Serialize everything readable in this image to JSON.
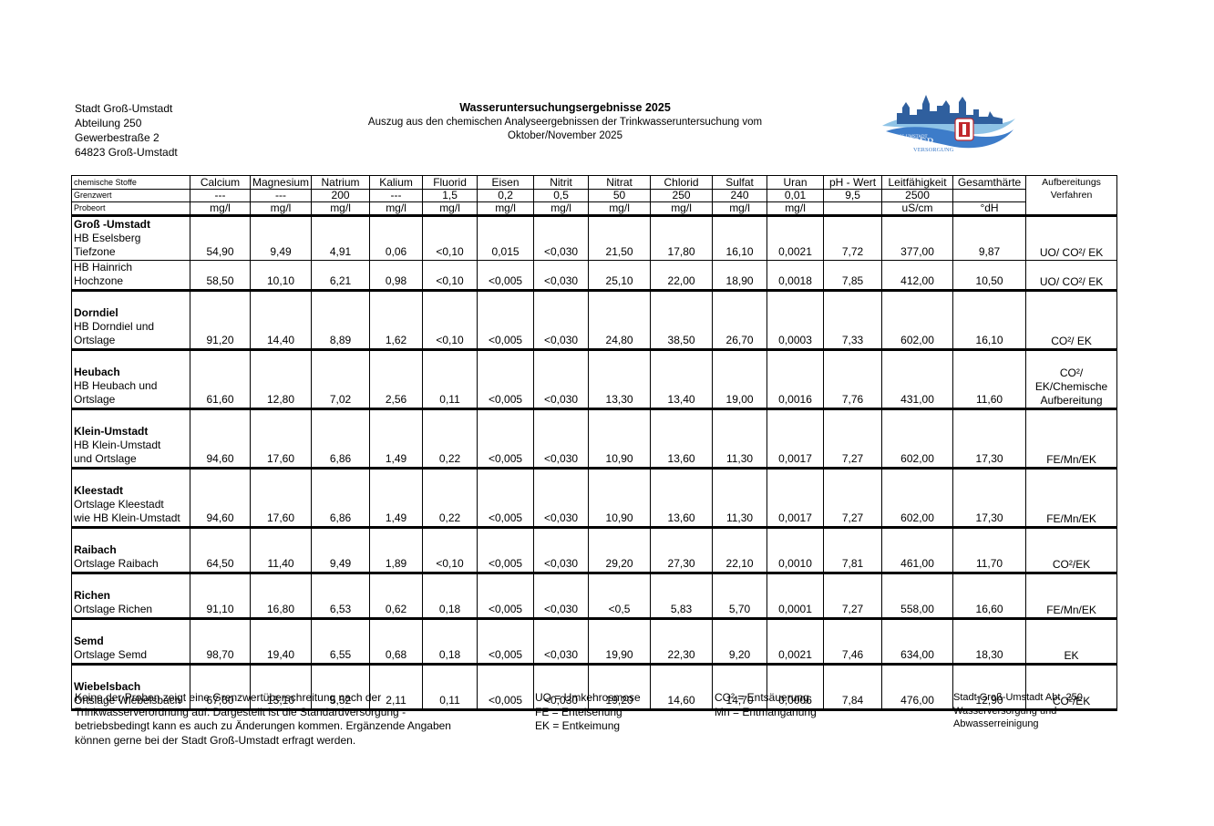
{
  "address": {
    "line1": "Stadt Groß-Umstadt",
    "line2": "Abteilung 250",
    "line3": "Gewerbestraße 2",
    "line4": "64823 Groß-Umstadt"
  },
  "header": {
    "title": "Wasseruntersuchungsergebnisse 2025",
    "subtitle1": "Auszug aus den chemischen Analyseergebnissen der Trinkwasseruntersuchung vom",
    "subtitle2": "Oktober/November 2025"
  },
  "logo": {
    "text_top": "GROSS-UMSTADT",
    "text_main": "WASSER",
    "text_sub": "VERSORGUNG",
    "icon": "city-skyline-wave-logo",
    "colors": {
      "blue": "#3d7cc9",
      "light_blue": "#8ec3e6",
      "red": "#c0282d"
    }
  },
  "table": {
    "row_labels": {
      "substances": "chemische Stoffe",
      "limit": "Grenzwert",
      "sample": "Probeort"
    },
    "process_header": "Aufbereitungs Verfahren",
    "columns": [
      {
        "name": "Calcium",
        "limit": "---",
        "unit": "mg/l"
      },
      {
        "name": "Magnesium",
        "limit": "---",
        "unit": "mg/l"
      },
      {
        "name": "Natrium",
        "limit": "200",
        "unit": "mg/l"
      },
      {
        "name": "Kalium",
        "limit": "---",
        "unit": "mg/l"
      },
      {
        "name": "Fluorid",
        "limit": "1,5",
        "unit": "mg/l"
      },
      {
        "name": "Eisen",
        "limit": "0,2",
        "unit": "mg/l"
      },
      {
        "name": "Nitrit",
        "limit": "0,5",
        "unit": "mg/l"
      },
      {
        "name": "Nitrat",
        "limit": "50",
        "unit": "mg/l"
      },
      {
        "name": "Chlorid",
        "limit": "250",
        "unit": "mg/l"
      },
      {
        "name": "Sulfat",
        "limit": "240",
        "unit": "mg/l"
      },
      {
        "name": "Uran",
        "limit": "0,01",
        "unit": "mg/l"
      },
      {
        "name": "pH - Wert",
        "limit": "9,5",
        "unit": ""
      },
      {
        "name": "Leitfähigkeit",
        "limit": "2500",
        "unit": "uS/cm"
      },
      {
        "name": "Gesamthärte",
        "limit": "",
        "unit": "°dH"
      }
    ],
    "rows": [
      {
        "bold": "Groß -Umstadt",
        "lines": [
          "HB Eselsberg",
          "Tiefzone"
        ],
        "values": [
          "54,90",
          "9,49",
          "4,91",
          "0,06",
          "<0,10",
          "0,015",
          "<0,030",
          "21,50",
          "17,80",
          "16,10",
          "0,0021",
          "7,72",
          "377,00",
          "9,87"
        ],
        "process": "UO/ CO²/ EK"
      },
      {
        "bold": "",
        "lines": [
          "HB Hainrich",
          "Hochzone"
        ],
        "values": [
          "58,50",
          "10,10",
          "6,21",
          "0,98",
          "<0,10",
          "<0,005",
          "<0,030",
          "25,10",
          "22,00",
          "18,90",
          "0,0018",
          "7,85",
          "412,00",
          "10,50"
        ],
        "process": "UO/ CO²/ EK"
      },
      {
        "bold": "Dorndiel",
        "lines": [
          "HB Dorndiel und",
          "Ortslage"
        ],
        "values": [
          "91,20",
          "14,40",
          "8,89",
          "1,62",
          "<0,10",
          "<0,005",
          "<0,030",
          "24,80",
          "38,50",
          "26,70",
          "0,0003",
          "7,33",
          "602,00",
          "16,10"
        ],
        "process": "CO²/ EK"
      },
      {
        "bold": "Heubach",
        "lines": [
          "HB Heubach und",
          "Ortslage"
        ],
        "values": [
          "61,60",
          "12,80",
          "7,02",
          "2,56",
          "0,11",
          "<0,005",
          "<0,030",
          "13,30",
          "13,40",
          "19,00",
          "0,0016",
          "7,76",
          "431,00",
          "11,60"
        ],
        "process": "CO²/ EK/Chemische Aufbereitung"
      },
      {
        "bold": "Klein-Umstadt",
        "lines": [
          "HB Klein-Umstadt",
          "und Ortslage"
        ],
        "values": [
          "94,60",
          "17,60",
          "6,86",
          "1,49",
          "0,22",
          "<0,005",
          "<0,030",
          "10,90",
          "13,60",
          "11,30",
          "0,0017",
          "7,27",
          "602,00",
          "17,30"
        ],
        "process": "FE/Mn/EK"
      },
      {
        "bold": "Kleestadt",
        "lines": [
          "Ortslage Kleestadt",
          "wie HB Klein-Umstadt"
        ],
        "values": [
          "94,60",
          "17,60",
          "6,86",
          "1,49",
          "0,22",
          "<0,005",
          "<0,030",
          "10,90",
          "13,60",
          "11,30",
          "0,0017",
          "7,27",
          "602,00",
          "17,30"
        ],
        "process": "FE/Mn/EK"
      },
      {
        "bold": "Raibach",
        "lines": [
          "Ortslage Raibach"
        ],
        "values": [
          "64,50",
          "11,40",
          "9,49",
          "1,89",
          "<0,10",
          "<0,005",
          "<0,030",
          "29,20",
          "27,30",
          "22,10",
          "0,0010",
          "7,81",
          "461,00",
          "11,70"
        ],
        "process": "CO²/EK"
      },
      {
        "bold": "Richen",
        "lines": [
          "Ortslage Richen"
        ],
        "values": [
          "91,10",
          "16,80",
          "6,53",
          "0,62",
          "0,18",
          "<0,005",
          "<0,030",
          "<0,5",
          "5,83",
          "5,70",
          "0,0001",
          "7,27",
          "558,00",
          "16,60"
        ],
        "process": "FE/Mn/EK"
      },
      {
        "bold": "Semd",
        "lines": [
          "Ortslage Semd"
        ],
        "values": [
          "98,70",
          "19,40",
          "6,55",
          "0,68",
          "0,18",
          "<0,005",
          "<0,030",
          "19,90",
          "22,30",
          "9,20",
          "0,0021",
          "7,46",
          "634,00",
          "18,30"
        ],
        "process": "EK"
      },
      {
        "bold": "Wiebelsbach",
        "lines": [
          "Ortslage Wiebelsbach"
        ],
        "values": [
          "67,60",
          "15,10",
          "5,52",
          "2,11",
          "0,11",
          "<0,005",
          "<0,030",
          "19,20",
          "14,60",
          "14,70",
          "0,0006",
          "7,84",
          "476,00",
          "12,90"
        ],
        "process": "CO²/EK"
      }
    ]
  },
  "footer": {
    "note": [
      "Keine der Proben zeigt eine Grenzwertüberschreitung nach der",
      "Trinkwasserverordnung auf. Dargestellt ist die Standardversorgung -",
      "betriebsbedingt kann es auch zu Änderungen kommen. Ergänzende Angaben",
      "können gerne bei der Stadt Groß-Umstadt erfragt werden."
    ],
    "legend1": [
      "UO = Umkehrosmose",
      "FE = Enteisenung",
      "EK = Entkeimung"
    ],
    "legend2": [
      "CO² = Entsäuerung",
      "Mn = Entmanganung"
    ],
    "org": [
      "Stadt Groß-Umstadt Abt. 250",
      "Wasserversorgung und",
      "Abwasserreinigung"
    ]
  }
}
